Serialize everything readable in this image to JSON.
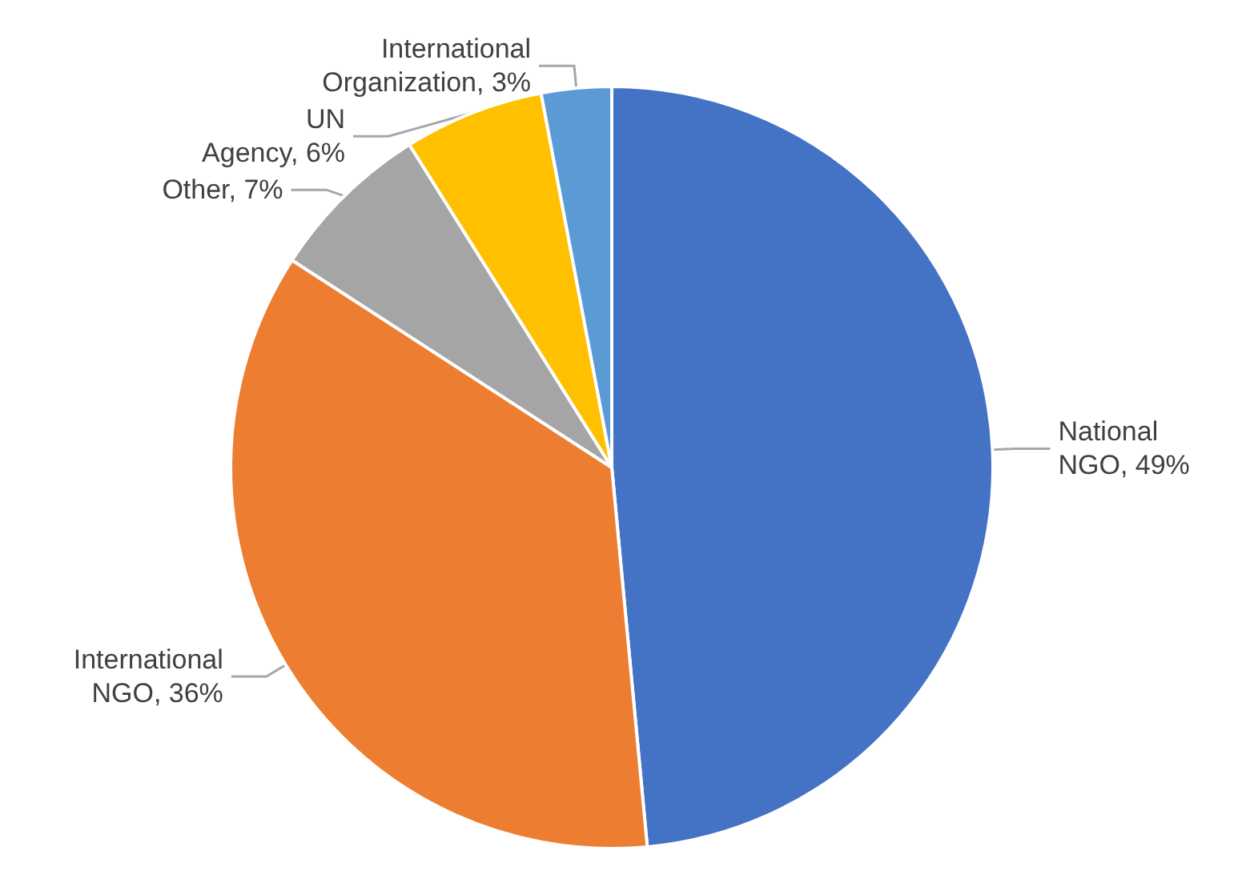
{
  "chart_data": {
    "type": "pie",
    "categories": [
      "National NGO",
      "International NGO",
      "Other",
      "UN Agency",
      "International Organization"
    ],
    "values": [
      49,
      36,
      7,
      6,
      3
    ],
    "value_labels": [
      "49%",
      "36%",
      "7%",
      "6%",
      "3%"
    ],
    "colors": [
      "#4472c4",
      "#ed7d31",
      "#a5a5a5",
      "#ffc000",
      "#5b9bd5"
    ],
    "legend": false
  }
}
